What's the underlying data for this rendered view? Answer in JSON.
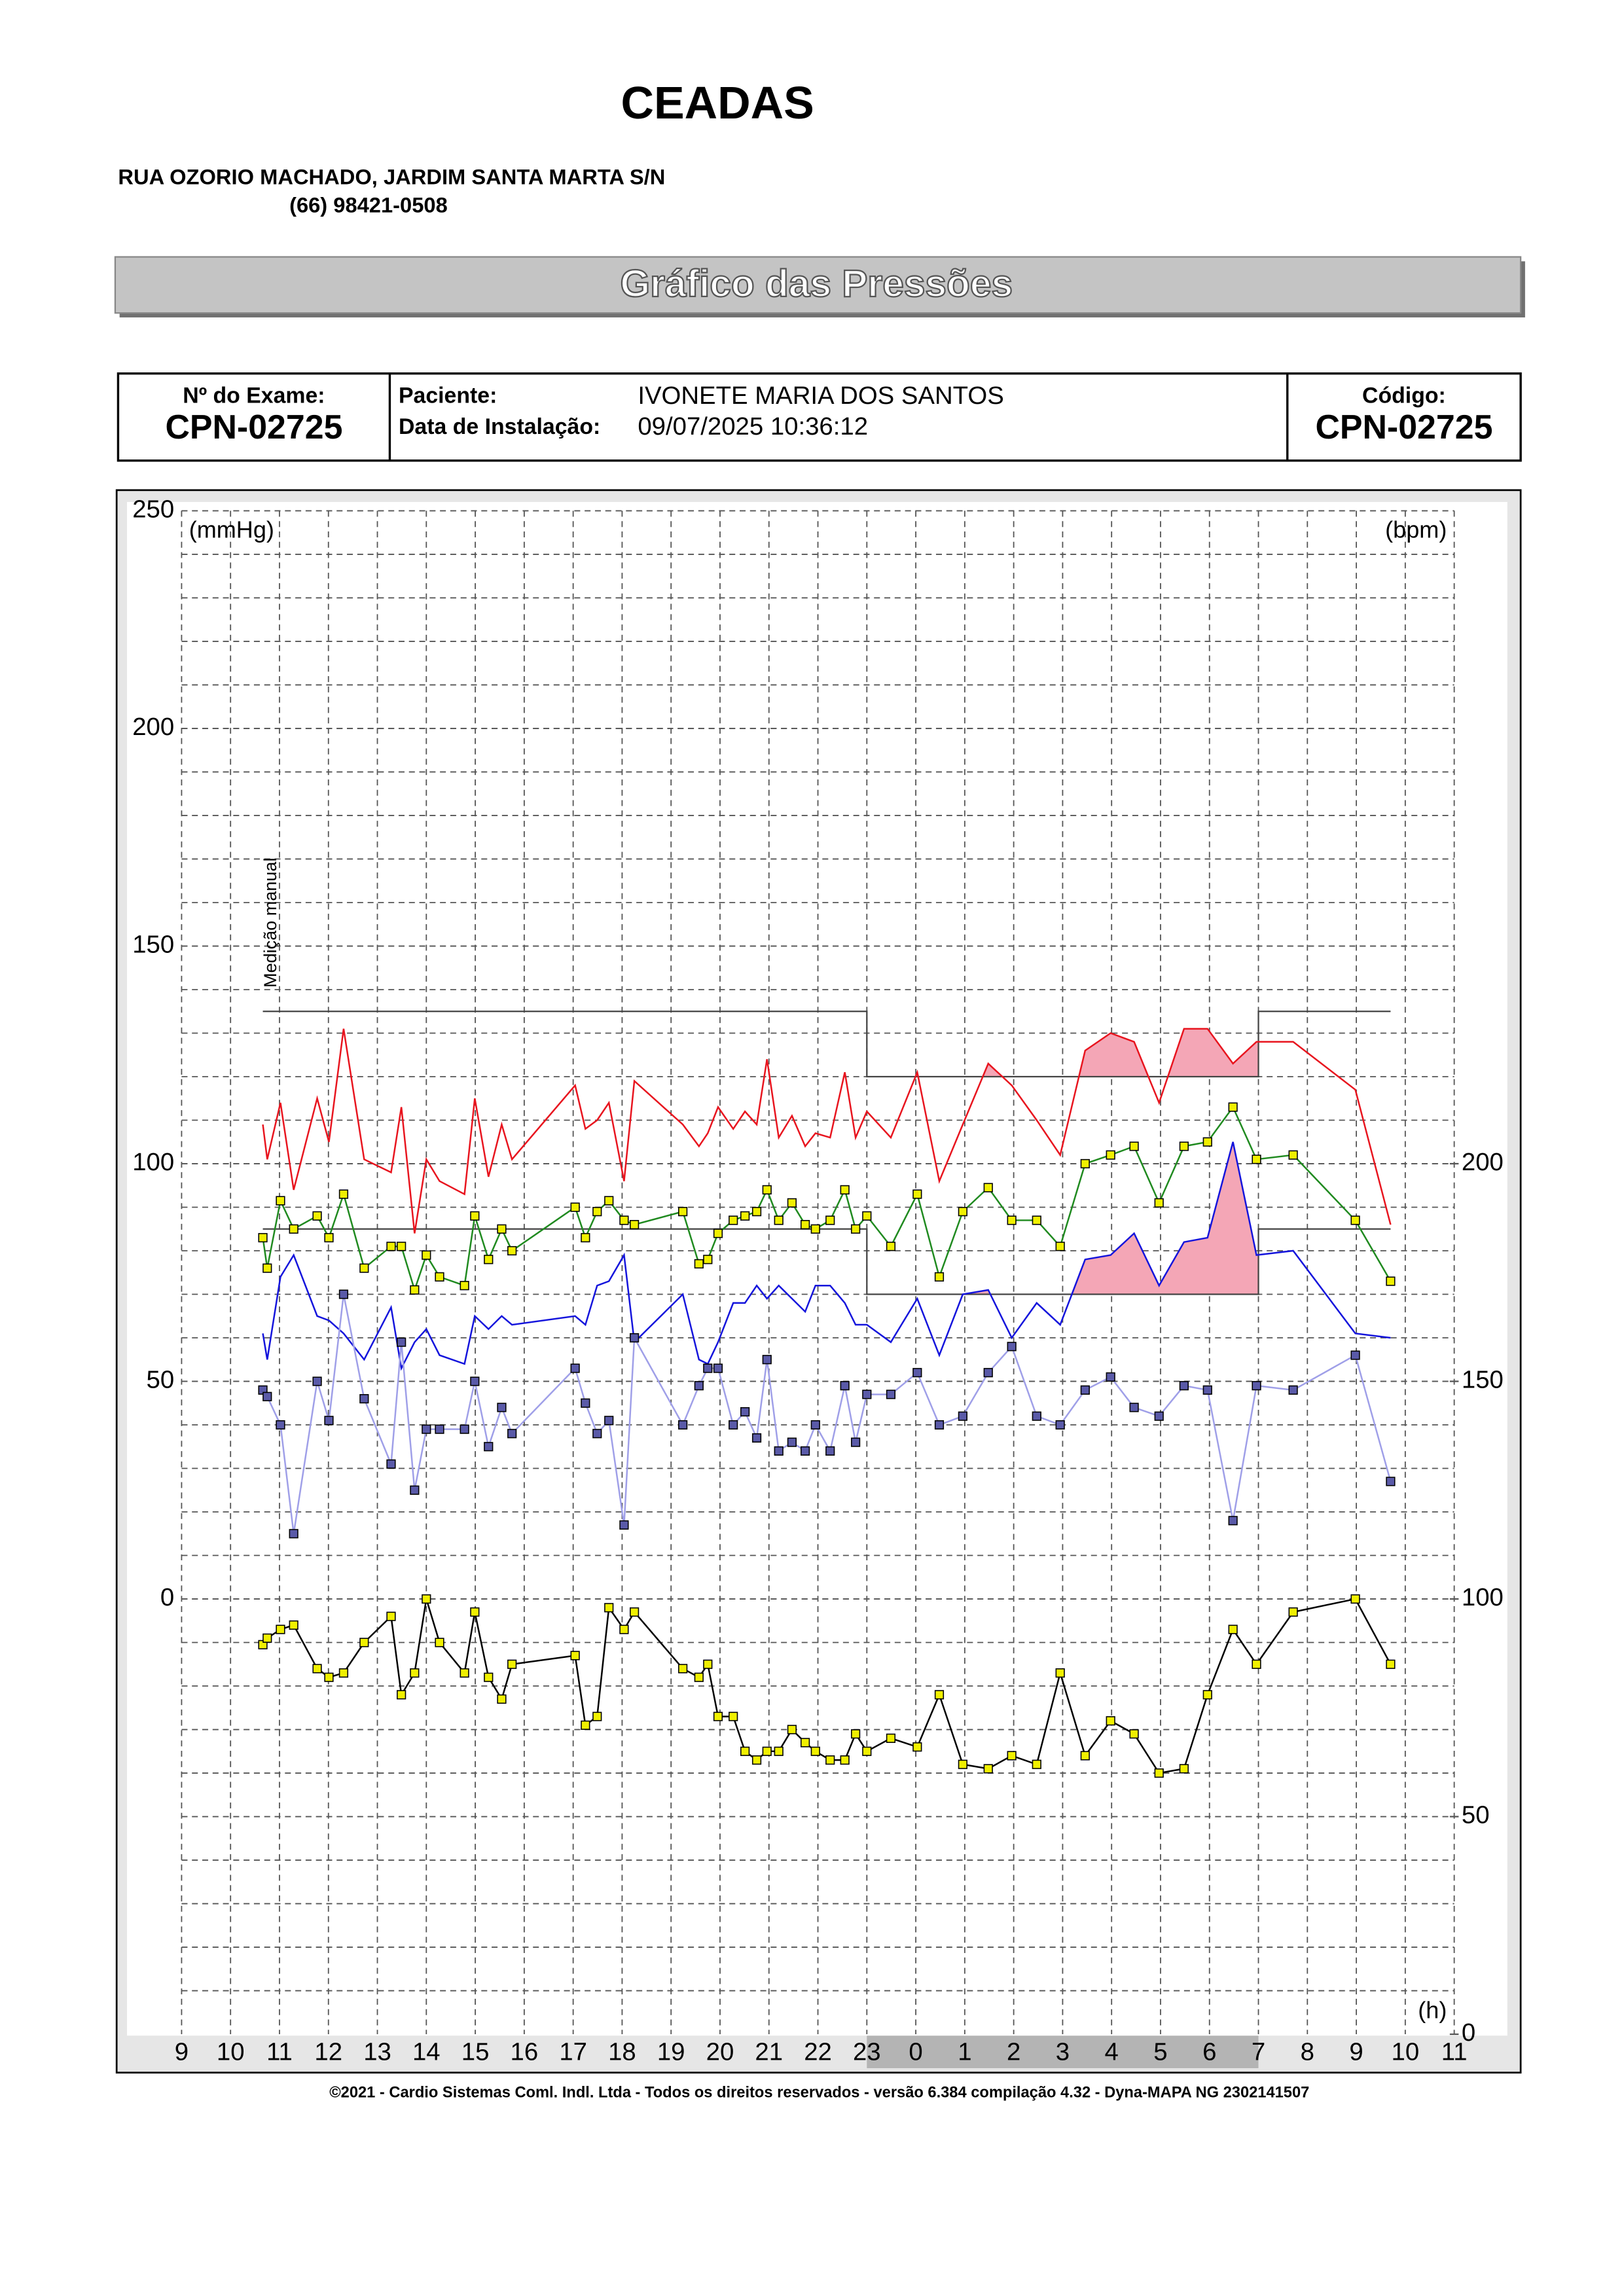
{
  "header": {
    "title": "CEADAS",
    "address": "RUA OZORIO MACHADO, JARDIM SANTA MARTA S/N",
    "phone": "(66) 98421-0508",
    "banner": "Gráfico das Pressões"
  },
  "info": {
    "exam_label": "Nº do Exame:",
    "exam": "CPN-02725",
    "patient_label": "Paciente:",
    "patient": "IVONETE MARIA DOS  SANTOS",
    "date_label": "Data de Instalação:",
    "date": "09/07/2025 10:36:12",
    "code_label": "Código:",
    "code": "CPN-02725"
  },
  "chart_data": {
    "type": "line",
    "ylabel": "(mmHg)",
    "y2label": "(bpm)",
    "xlabel": "(h)",
    "annotation": "Medição manual",
    "annotation_x": 10.75,
    "xlim": [
      9,
      35
    ],
    "ylim": [
      -100,
      250
    ],
    "y2lim": [
      0,
      350
    ],
    "grid": true,
    "xticks": [
      9,
      10,
      11,
      12,
      13,
      14,
      15,
      16,
      17,
      18,
      19,
      20,
      21,
      22,
      23,
      {
        "value": 24,
        "label": "0"
      },
      {
        "value": 25,
        "label": "1"
      },
      {
        "value": 26,
        "label": "2"
      },
      {
        "value": 27,
        "label": "3"
      },
      {
        "value": 28,
        "label": "4"
      },
      {
        "value": 29,
        "label": "5"
      },
      {
        "value": 30,
        "label": "6"
      },
      {
        "value": 31,
        "label": "7"
      },
      {
        "value": 32,
        "label": "8"
      },
      {
        "value": 33,
        "label": "9"
      },
      {
        "value": 34,
        "label": "10"
      },
      {
        "value": 35,
        "label": "11"
      }
    ],
    "yticks": [
      0,
      50,
      100,
      150,
      200,
      250
    ],
    "y2ticks": [
      0,
      50,
      100,
      150,
      200
    ],
    "night": [
      23,
      31
    ],
    "limits": {
      "day": {
        "systolic": 135,
        "diastolic": 85
      },
      "night": {
        "systolic": 120,
        "diastolic": 70
      }
    },
    "highlight_color": "#f4a6b6",
    "x": [
      10.66,
      10.75,
      11.02,
      11.29,
      11.77,
      12.01,
      12.31,
      12.73,
      13.28,
      13.49,
      13.76,
      14.0,
      14.27,
      14.78,
      14.99,
      15.27,
      15.54,
      15.75,
      17.04,
      17.25,
      17.49,
      17.73,
      18.04,
      18.25,
      19.24,
      19.57,
      19.75,
      19.96,
      20.27,
      20.51,
      20.75,
      20.96,
      21.2,
      21.47,
      21.74,
      21.95,
      22.25,
      22.55,
      22.77,
      23.0,
      23.49,
      24.03,
      24.48,
      24.96,
      25.48,
      25.96,
      26.47,
      26.95,
      27.46,
      27.98,
      28.46,
      28.97,
      29.48,
      29.96,
      30.48,
      30.96,
      31.71,
      32.98,
      33.7
    ],
    "series": [
      {
        "key": "systolic",
        "color": "#e8141e",
        "values": [
          109,
          101,
          114,
          94,
          115,
          105,
          131,
          101,
          98,
          113,
          84,
          101,
          96,
          93,
          115,
          97,
          109,
          101,
          118,
          108,
          110,
          114,
          96,
          119,
          109,
          104,
          107,
          113,
          108,
          112,
          109,
          124,
          106,
          111,
          104,
          107,
          106,
          121,
          106,
          112,
          106,
          121,
          96,
          109,
          123,
          118,
          110,
          102,
          126,
          130,
          128,
          114,
          131,
          131,
          123,
          128,
          128,
          117,
          86
        ]
      },
      {
        "key": "mean",
        "color": "#1f8a1f",
        "marker_color": "#f0f000",
        "values": [
          83,
          76,
          91.5,
          85,
          88,
          83,
          93,
          76,
          81,
          81,
          71,
          79,
          74,
          72,
          88,
          78,
          85,
          80,
          90,
          83,
          89,
          91.5,
          87,
          86,
          89,
          77,
          78,
          84,
          87,
          88,
          89,
          94,
          87,
          91,
          86,
          85,
          87,
          94,
          85,
          88,
          81,
          93,
          74,
          89,
          94.5,
          87,
          87,
          81,
          100,
          102,
          104,
          91,
          104,
          105,
          113,
          101,
          102,
          87,
          73
        ]
      },
      {
        "key": "diastolic",
        "color": "#1414dc",
        "values": [
          61,
          55,
          74,
          79,
          65,
          64,
          61,
          55,
          67,
          53,
          59,
          62,
          56,
          54,
          65,
          62,
          65,
          63,
          65,
          63,
          72,
          73,
          79,
          59,
          70,
          55,
          54,
          59,
          68,
          68,
          72,
          69,
          72,
          69,
          66,
          72,
          72,
          68,
          63,
          63,
          59,
          69,
          56,
          70,
          71,
          60,
          68,
          63,
          78,
          79,
          84,
          72,
          82,
          83,
          105,
          79,
          80,
          61,
          60
        ]
      },
      {
        "key": "pulse",
        "color": "#9f9fe8",
        "marker_color": "#5a5aa8",
        "values": [
          48,
          46.5,
          40,
          15,
          50,
          41,
          70,
          46,
          31,
          59,
          25,
          39,
          39,
          39,
          50,
          35,
          44,
          38,
          53,
          45,
          38,
          41,
          17,
          60,
          40,
          49,
          53,
          53,
          40,
          43,
          37,
          55,
          34,
          36,
          34,
          40,
          34,
          49,
          36,
          47,
          47,
          52,
          40,
          42,
          52,
          58,
          42,
          40,
          48,
          51,
          44,
          42,
          49,
          48,
          18,
          49,
          48,
          56,
          27
        ]
      },
      {
        "key": "heart_rate",
        "axis": "y2",
        "color": "#000000",
        "marker_color": "#f0f000",
        "values": [
          89.5,
          91,
          93,
          94,
          84,
          82,
          83,
          90,
          96,
          78,
          83,
          100,
          90,
          83,
          97,
          82,
          77,
          85,
          87,
          71,
          73,
          98,
          93,
          97,
          84,
          82,
          85,
          73,
          73,
          65,
          63,
          65,
          65,
          70,
          67,
          65,
          63,
          63,
          69,
          65,
          68,
          66,
          78,
          62,
          61,
          64,
          62,
          83,
          64,
          72,
          69,
          60,
          61,
          78,
          93,
          85,
          97,
          100,
          85
        ]
      }
    ]
  },
  "footer": "©2021 - Cardio Sistemas Coml. Indl. Ltda - Todos os direitos reservados - versão 6.384 compilação 4.32 - Dyna-MAPA NG 2302141507"
}
